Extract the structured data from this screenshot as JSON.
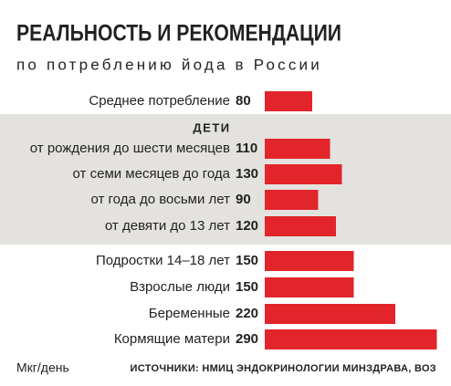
{
  "chart_data": {
    "type": "bar",
    "orientation": "horizontal",
    "title": "РЕАЛЬНОСТЬ И РЕКОМЕНДАЦИИ",
    "subtitle": "по потреблению йода в России",
    "group_label": "ДЕТИ",
    "categories": [
      "Среднее потребление",
      "от рождения до шести месяцев",
      "от семи месяцев до года",
      "от года до восьми лет",
      "от девяти до 13 лет",
      "Подростки 14–18 лет",
      "Взрослые люди",
      "Беременные",
      "Кормящие матери"
    ],
    "values": [
      80,
      110,
      130,
      90,
      120,
      150,
      150,
      220,
      290
    ],
    "color": "#e2252b",
    "unit_label": "Мкг/день",
    "source": "ИСТОЧНИКИ: НМИЦ ЭНДОКРИНОЛОГИИ МИНЗДРАВА, ВОЗ"
  }
}
